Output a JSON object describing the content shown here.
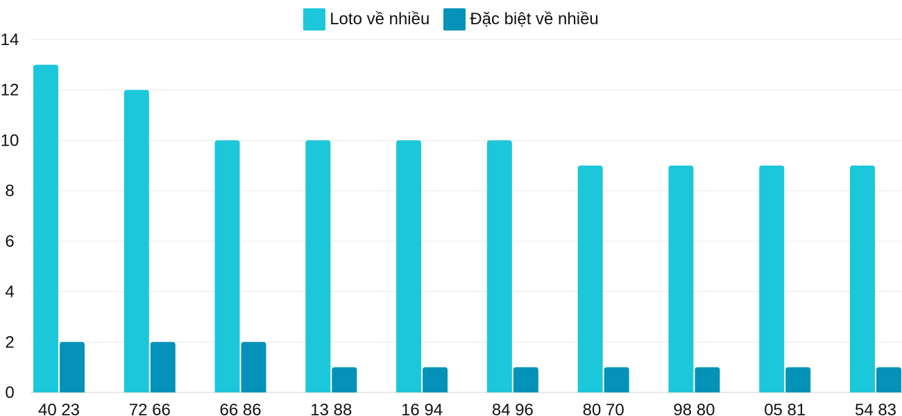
{
  "chart_data": {
    "type": "bar",
    "categories": [
      "40 23",
      "72 66",
      "66 86",
      "13 88",
      "16 94",
      "84 96",
      "80 70",
      "98 80",
      "05 81",
      "54 83"
    ],
    "series": [
      {
        "name": "Loto về nhiều",
        "color": "#1cc7da",
        "values": [
          13,
          12,
          10,
          10,
          10,
          10,
          9,
          9,
          9,
          9
        ]
      },
      {
        "name": "Đặc biệt về nhiều",
        "color": "#0592b8",
        "values": [
          2,
          2,
          2,
          1,
          1,
          1,
          1,
          1,
          1,
          1
        ]
      }
    ],
    "yticks": [
      "0",
      "2",
      "4",
      "6",
      "8",
      "10",
      "12",
      "14"
    ],
    "ylim": [
      0,
      14
    ],
    "grid": true,
    "legend_position": "top-center"
  }
}
